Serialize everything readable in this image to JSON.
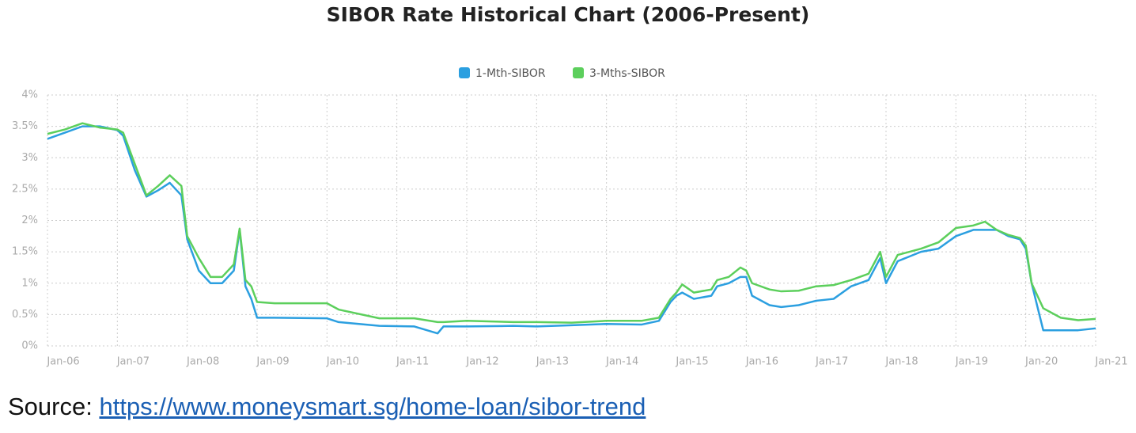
{
  "chart_data": {
    "type": "line",
    "title": "SIBOR Rate Historical Chart (2006-Present)",
    "x": [
      "2006-01",
      "2006-04",
      "2006-07",
      "2006-10",
      "2007-01",
      "2007-02",
      "2007-04",
      "2007-06",
      "2007-08",
      "2007-10",
      "2007-12",
      "2008-01",
      "2008-03",
      "2008-05",
      "2008-07",
      "2008-09",
      "2008-10",
      "2008-11",
      "2008-12",
      "2009-01",
      "2009-04",
      "2010-01",
      "2010-03",
      "2010-10",
      "2011-04",
      "2011-08",
      "2011-09",
      "2012-01",
      "2012-09",
      "2013-01",
      "2013-07",
      "2014-01",
      "2014-07",
      "2014-10",
      "2014-12",
      "2015-01",
      "2015-02",
      "2015-04",
      "2015-07",
      "2015-08",
      "2015-10",
      "2015-12",
      "2016-01",
      "2016-02",
      "2016-05",
      "2016-07",
      "2016-10",
      "2017-01",
      "2017-04",
      "2017-07",
      "2017-10",
      "2017-12",
      "2018-01",
      "2018-03",
      "2018-07",
      "2018-10",
      "2019-01",
      "2019-04",
      "2019-06",
      "2019-08",
      "2019-10",
      "2019-12",
      "2020-01",
      "2020-02",
      "2020-04",
      "2020-07",
      "2020-10",
      "2021-01"
    ],
    "series": [
      {
        "name": "1-Mth-SIBOR",
        "color": "#2b9fe0",
        "values": [
          3.3,
          3.4,
          3.5,
          3.5,
          3.44,
          3.35,
          2.8,
          2.38,
          2.48,
          2.6,
          2.4,
          1.7,
          1.2,
          1.0,
          1.0,
          1.2,
          1.85,
          0.95,
          0.75,
          0.45,
          0.45,
          0.44,
          0.38,
          0.32,
          0.31,
          0.2,
          0.31,
          0.31,
          0.32,
          0.31,
          0.33,
          0.35,
          0.34,
          0.4,
          0.7,
          0.8,
          0.85,
          0.75,
          0.8,
          0.95,
          1.0,
          1.1,
          1.1,
          0.8,
          0.65,
          0.62,
          0.65,
          0.72,
          0.75,
          0.95,
          1.05,
          1.4,
          1.0,
          1.35,
          1.5,
          1.55,
          1.75,
          1.85,
          1.85,
          1.85,
          1.75,
          1.7,
          1.55,
          1.0,
          0.25,
          0.25,
          0.25,
          0.28
        ]
      },
      {
        "name": "3-Mths-SIBOR",
        "color": "#5ccf5c",
        "values": [
          3.38,
          3.45,
          3.55,
          3.48,
          3.45,
          3.4,
          2.9,
          2.4,
          2.55,
          2.72,
          2.55,
          1.75,
          1.4,
          1.1,
          1.1,
          1.3,
          1.87,
          1.05,
          0.95,
          0.7,
          0.68,
          0.68,
          0.58,
          0.44,
          0.44,
          0.38,
          0.38,
          0.4,
          0.38,
          0.38,
          0.37,
          0.4,
          0.4,
          0.45,
          0.75,
          0.85,
          0.98,
          0.85,
          0.9,
          1.05,
          1.1,
          1.25,
          1.2,
          1.0,
          0.9,
          0.87,
          0.88,
          0.95,
          0.97,
          1.05,
          1.15,
          1.5,
          1.1,
          1.45,
          1.55,
          1.65,
          1.88,
          1.92,
          1.98,
          1.85,
          1.77,
          1.72,
          1.6,
          1.0,
          0.6,
          0.45,
          0.41,
          0.43
        ]
      }
    ],
    "xlim": [
      "2006-01",
      "2021-01"
    ],
    "xticks": [
      {
        "value": "2006-01",
        "label": "Jan-06"
      },
      {
        "value": "2007-01",
        "label": "Jan-07"
      },
      {
        "value": "2008-01",
        "label": "Jan-08"
      },
      {
        "value": "2009-01",
        "label": "Jan-09"
      },
      {
        "value": "2010-01",
        "label": "Jan-10"
      },
      {
        "value": "2011-01",
        "label": "Jan-11"
      },
      {
        "value": "2012-01",
        "label": "Jan-12"
      },
      {
        "value": "2013-01",
        "label": "Jan-13"
      },
      {
        "value": "2014-01",
        "label": "Jan-14"
      },
      {
        "value": "2015-01",
        "label": "Jan-15"
      },
      {
        "value": "2016-01",
        "label": "Jan-16"
      },
      {
        "value": "2017-01",
        "label": "Jan-17"
      },
      {
        "value": "2018-01",
        "label": "Jan-18"
      },
      {
        "value": "2019-01",
        "label": "Jan-19"
      },
      {
        "value": "2020-01",
        "label": "Jan-20"
      },
      {
        "value": "2021-01",
        "label": "Jan-21"
      }
    ],
    "ylim": [
      0,
      4
    ],
    "yticks": [
      {
        "value": 0,
        "label": "0%"
      },
      {
        "value": 0.5,
        "label": "0.5%"
      },
      {
        "value": 1,
        "label": "1%"
      },
      {
        "value": 1.5,
        "label": "1.5%"
      },
      {
        "value": 2,
        "label": "2%"
      },
      {
        "value": 2.5,
        "label": "2.5%"
      },
      {
        "value": 3,
        "label": "3%"
      },
      {
        "value": 3.5,
        "label": "3.5%"
      },
      {
        "value": 4,
        "label": "4%"
      }
    ],
    "grid": true,
    "legend": "top"
  },
  "source": {
    "prefix": "Source:",
    "url": "https://www.moneysmart.sg/home-loan/sibor-trend"
  }
}
